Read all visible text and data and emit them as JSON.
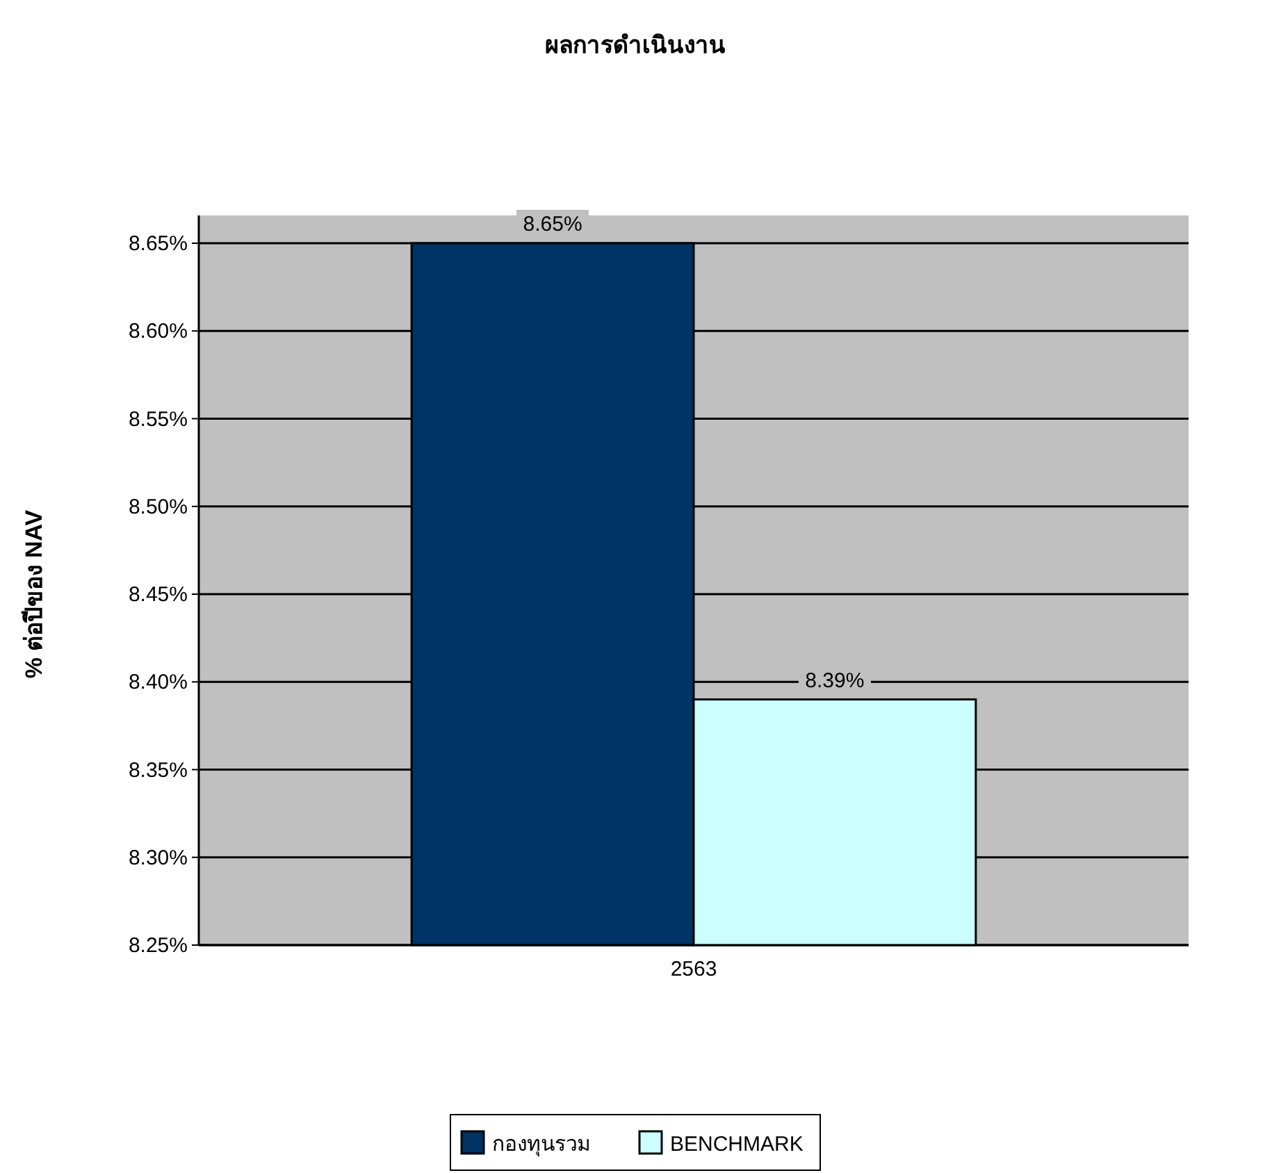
{
  "chart_data": {
    "type": "bar",
    "title": "ผลการดำเนินงาน",
    "ylabel": "% ต่อปีของ NAV",
    "categories": [
      "2563"
    ],
    "series": [
      {
        "name": "กองทุนรวม",
        "color": "#003366",
        "values": [
          8.65
        ],
        "value_labels": [
          "8.65%"
        ]
      },
      {
        "name": "BENCHMARK",
        "color": "#ccffff",
        "values": [
          8.39
        ],
        "value_labels": [
          "8.39%"
        ]
      }
    ],
    "ylim": [
      8.25,
      8.65
    ],
    "yticks": [
      {
        "value": 8.25,
        "label": "8.25%"
      },
      {
        "value": 8.3,
        "label": "8.30%"
      },
      {
        "value": 8.35,
        "label": "8.35%"
      },
      {
        "value": 8.4,
        "label": "8.40%"
      },
      {
        "value": 8.45,
        "label": "8.45%"
      },
      {
        "value": 8.5,
        "label": "8.50%"
      },
      {
        "value": 8.55,
        "label": "8.55%"
      },
      {
        "value": 8.6,
        "label": "8.60%"
      },
      {
        "value": 8.65,
        "label": "8.65%"
      }
    ],
    "grid": "y",
    "legend": "bottom"
  }
}
